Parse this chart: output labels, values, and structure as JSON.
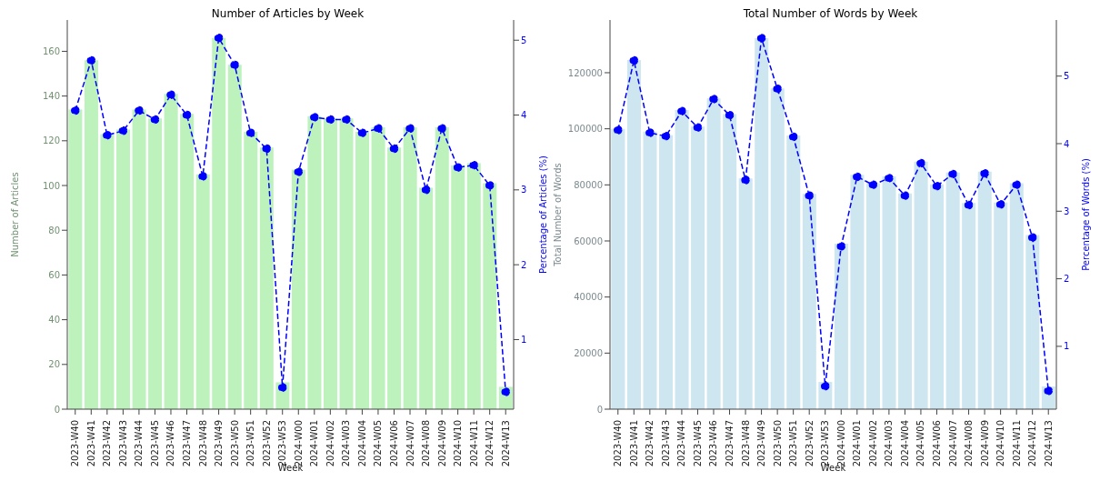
{
  "chart_data": [
    {
      "type": "bar",
      "title": "Number of Articles by Week",
      "xlabel": "Week",
      "ylabel": "Number of Articles",
      "y2label": "Percentage of Articles (%)",
      "categories": [
        "2023-W40",
        "2023-W41",
        "2023-W42",
        "2023-W43",
        "2023-W44",
        "2023-W45",
        "2023-W46",
        "2023-W47",
        "2023-W48",
        "2023-W49",
        "2023-W50",
        "2023-W51",
        "2023-W52",
        "2023-W53",
        "2024-W00",
        "2024-W01",
        "2024-W02",
        "2024-W03",
        "2024-W04",
        "2024-W05",
        "2024-W06",
        "2024-W07",
        "2024-W08",
        "2024-W09",
        "2024-W10",
        "2024-W11",
        "2024-W12",
        "2024-W13"
      ],
      "series": [
        {
          "color": "#bdf2bd",
          "values": [
            134,
            156,
            123,
            125,
            134,
            130,
            141,
            132,
            105,
            166,
            154,
            124,
            117,
            12,
            107,
            131,
            130,
            130,
            124,
            126,
            117,
            126,
            99,
            126,
            109,
            110,
            101,
            10
          ]
        },
        {
          "type": "line",
          "axis": "y2",
          "color": "#0000ff",
          "marker": "circle",
          "line_style": "dashed",
          "values": [
            4.06,
            4.73,
            3.73,
            3.79,
            4.06,
            3.94,
            4.27,
            4.0,
            3.18,
            5.03,
            4.67,
            3.76,
            3.55,
            0.36,
            3.24,
            3.97,
            3.94,
            3.94,
            3.76,
            3.82,
            3.55,
            3.82,
            3.0,
            3.82,
            3.3,
            3.33,
            3.06,
            0.3
          ]
        }
      ],
      "ylim": [
        0,
        174
      ],
      "yticks": [
        0,
        20,
        40,
        60,
        80,
        100,
        120,
        140,
        160
      ],
      "y2lim": [
        0.07,
        5.27
      ],
      "y2ticks": [
        1,
        2,
        3,
        4,
        5
      ],
      "grid": false
    },
    {
      "type": "bar",
      "title": "Total Number of Words by Week",
      "xlabel": "Week",
      "ylabel": "Total Number of Words",
      "y2label": "Percentage of Words (%)",
      "categories": [
        "2023-W40",
        "2023-W41",
        "2023-W42",
        "2023-W43",
        "2023-W44",
        "2023-W45",
        "2023-W46",
        "2023-W47",
        "2023-W48",
        "2023-W49",
        "2023-W50",
        "2023-W51",
        "2023-W52",
        "2023-W53",
        "2024-W00",
        "2024-W01",
        "2024-W02",
        "2024-W03",
        "2024-W04",
        "2024-W05",
        "2024-W06",
        "2024-W07",
        "2024-W08",
        "2024-W09",
        "2024-W10",
        "2024-W11",
        "2024-W12",
        "2024-W13"
      ],
      "series": [
        {
          "color": "#cde6ef",
          "values": [
            100000,
            124500,
            99000,
            97700,
            106700,
            100800,
            110800,
            105200,
            82300,
            132300,
            114400,
            97600,
            76800,
            9700,
            59000,
            83600,
            80600,
            83000,
            76900,
            88300,
            80200,
            84400,
            73500,
            84700,
            73700,
            80600,
            62100,
            8100
          ]
        },
        {
          "type": "line",
          "axis": "y2",
          "color": "#0000ff",
          "marker": "circle",
          "line_style": "dashed",
          "values": [
            4.2,
            5.23,
            4.16,
            4.11,
            4.48,
            4.24,
            4.66,
            4.42,
            3.46,
            5.56,
            4.81,
            4.1,
            3.23,
            0.41,
            2.48,
            3.51,
            3.39,
            3.49,
            3.23,
            3.71,
            3.37,
            3.55,
            3.09,
            3.56,
            3.1,
            3.39,
            2.61,
            0.34
          ]
        }
      ],
      "ylim": [
        0,
        138800
      ],
      "yticks": [
        0,
        20000,
        40000,
        60000,
        80000,
        100000,
        120000
      ],
      "y2lim": [
        0.07,
        5.83
      ],
      "y2ticks": [
        1,
        2,
        3,
        4,
        5
      ],
      "grid": false
    }
  ]
}
